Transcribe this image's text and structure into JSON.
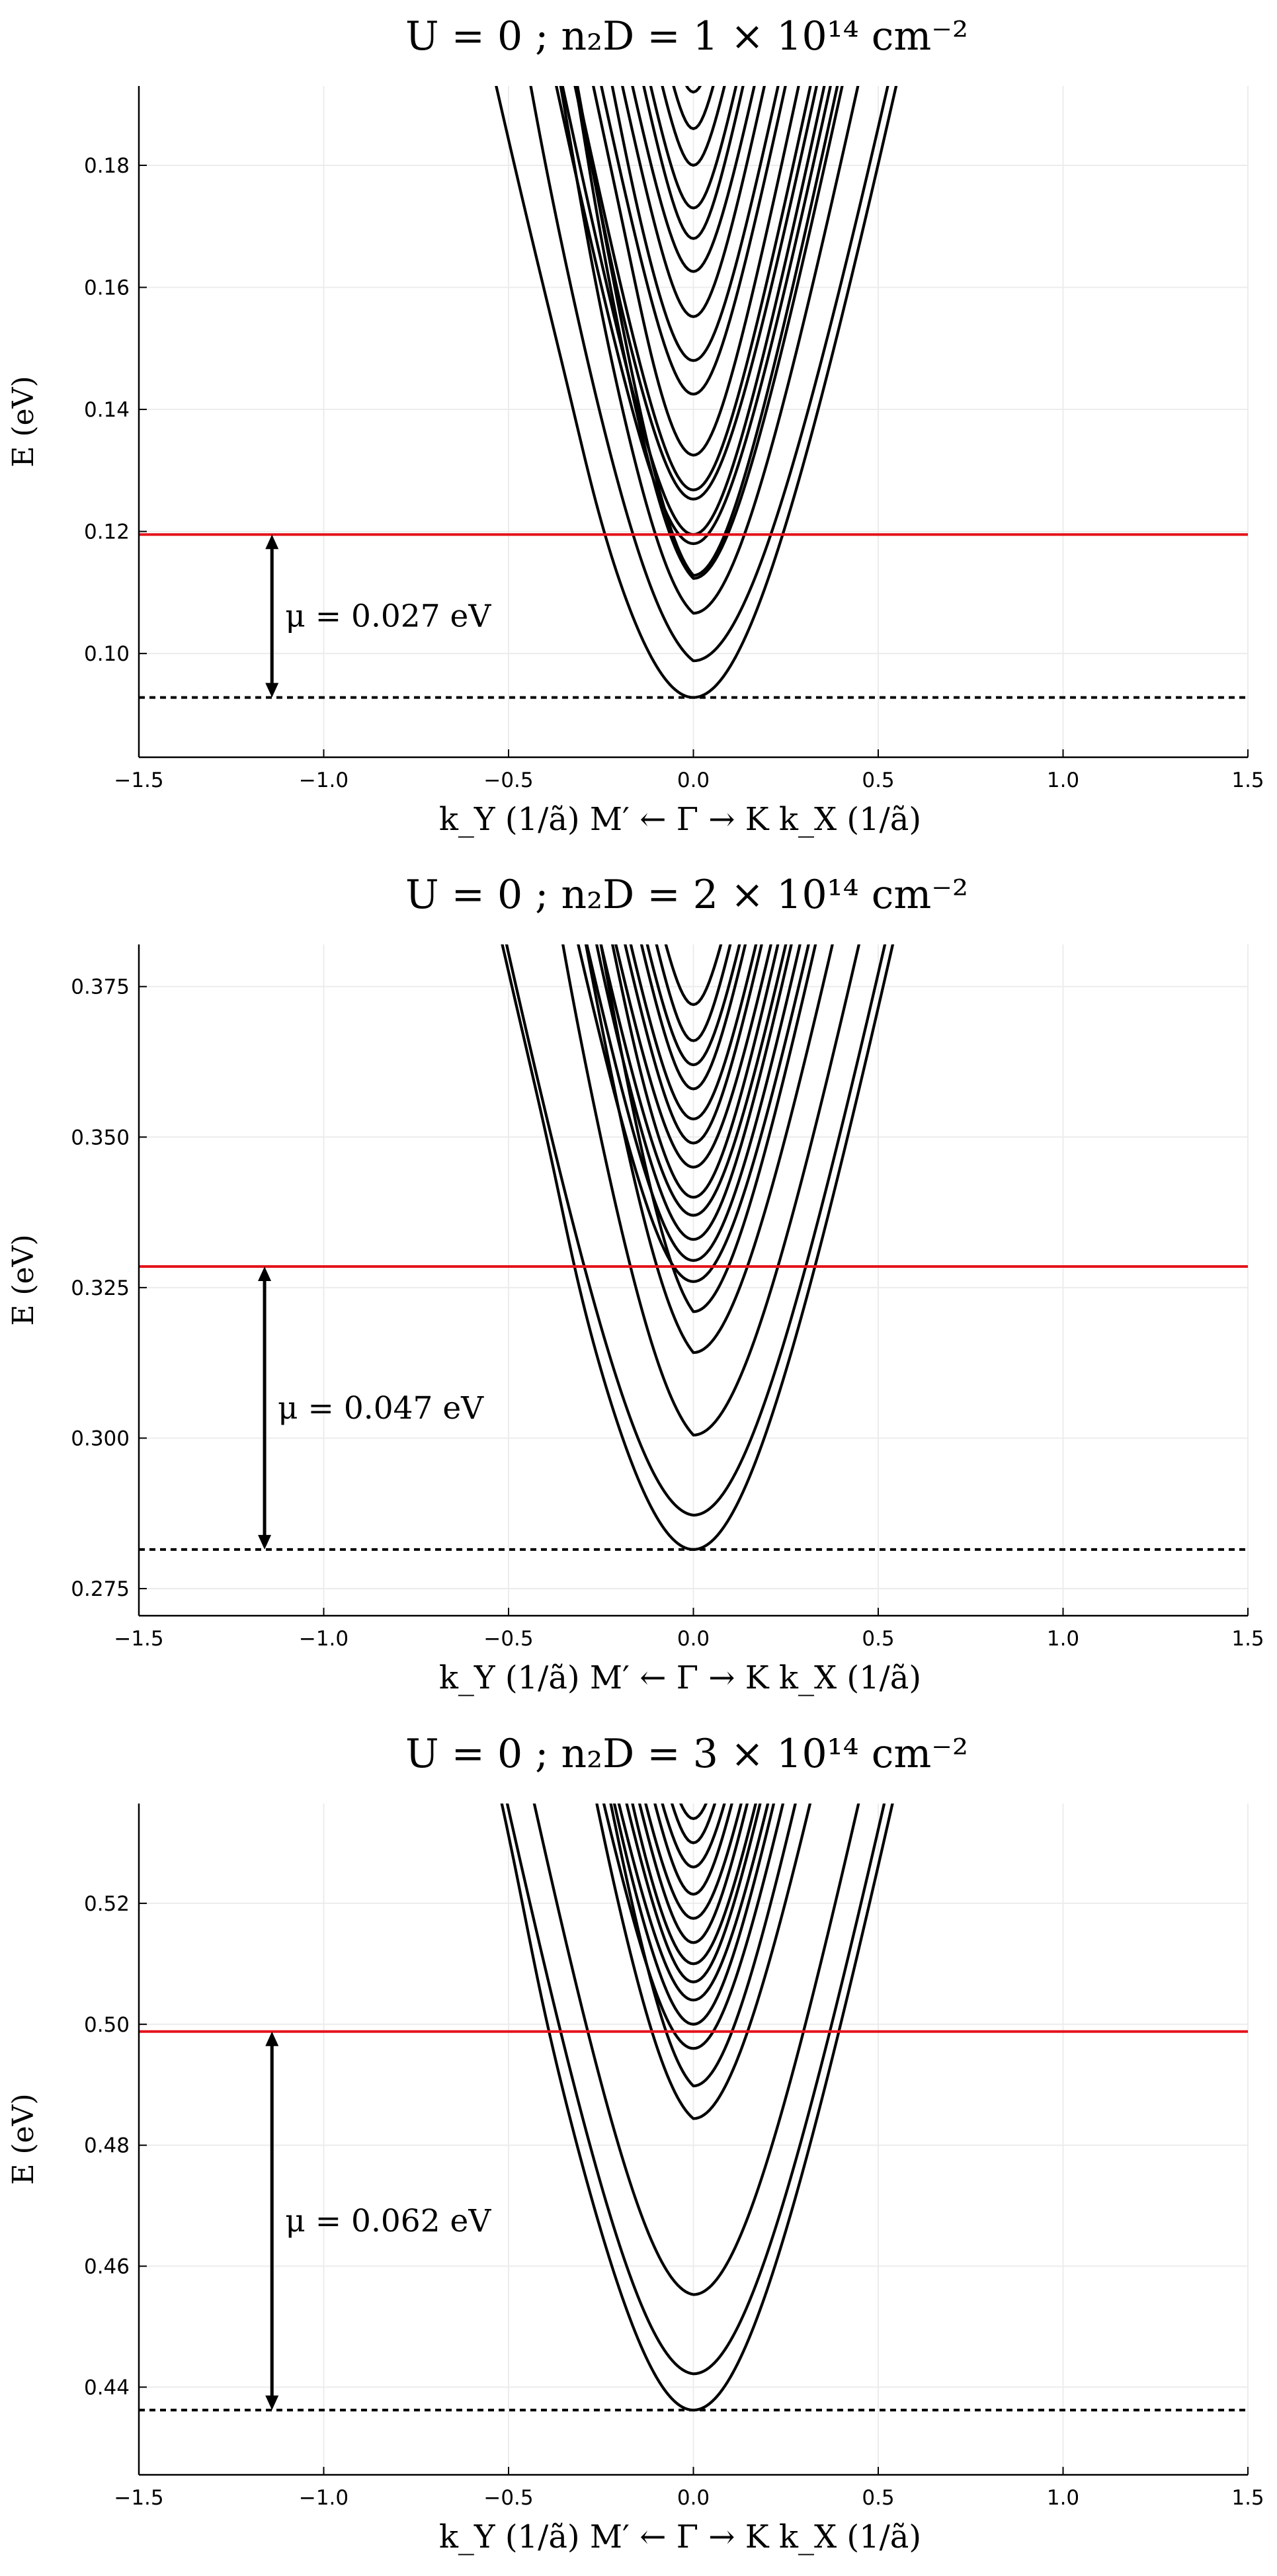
{
  "figure": {
    "band_color": "#000000",
    "fermi_color": "#e4141b",
    "grid_color": "#ececec"
  },
  "chart_data": [
    {
      "type": "line",
      "title": "U = 0 ; n₂D = 1 × 10¹⁴ cm⁻²",
      "xlabel": "k_Y (1/ã)    M′ ← Γ → K    k_X (1/ã)",
      "ylabel": "E (eV)",
      "xlim": [
        -1.5,
        1.5
      ],
      "ylim": [
        0.083,
        0.193
      ],
      "xticks": [
        -1.5,
        -1.0,
        -0.5,
        0.0,
        0.5,
        1.0,
        1.5
      ],
      "xtick_labels": [
        "−1.5",
        "−1.0",
        "−0.5",
        "0.0",
        "0.5",
        "1.0",
        "1.5"
      ],
      "yticks": [
        0.1,
        0.12,
        0.14,
        0.16,
        0.18
      ],
      "ytick_labels": [
        "0.10",
        "0.12",
        "0.14",
        "0.16",
        "0.18"
      ],
      "fermi_level": 0.1195,
      "band_bottom": 0.0928,
      "mu_annotation": {
        "text": "μ = 0.027 eV",
        "x": -1.14
      },
      "bands": [
        {
          "e0": 0.0928,
          "m": 0.085,
          "kink": {
            "x": -0.3,
            "d": 0.004
          },
          "left_offset": 0
        },
        {
          "e0": 0.0988,
          "m": 0.085,
          "kink": {
            "x": -0.45,
            "d": 0.004
          },
          "left_offset": 0.028
        },
        {
          "e0": 0.1066,
          "m": 0.06,
          "kink": {
            "x": -0.32,
            "d": 0.005
          },
          "left_offset": 0.032
        },
        {
          "e0": 0.1123,
          "m": 0.05,
          "kink": {
            "x": -0.3,
            "d": 0.006
          },
          "left_offset": 0.036
        },
        {
          "e0": 0.1128,
          "m": 0.045,
          "kink": null,
          "left_offset": 0.04
        },
        {
          "e0": 0.118,
          "m": 0.045,
          "kink": null,
          "left_offset": 0
        },
        {
          "e0": 0.1195,
          "m": 0.04,
          "kink": null,
          "left_offset": 0
        },
        {
          "e0": 0.1253,
          "m": 0.04,
          "kink": {
            "x": -0.25,
            "d": 0.004
          },
          "left_offset": 0
        },
        {
          "e0": 0.1268,
          "m": 0.035,
          "kink": null,
          "left_offset": 0
        },
        {
          "e0": 0.1325,
          "m": 0.03,
          "kink": {
            "x": -0.15,
            "d": 0.004
          },
          "left_offset": 0
        },
        {
          "e0": 0.1425,
          "m": 0.03,
          "kink": null,
          "left_offset": 0
        },
        {
          "e0": 0.148,
          "m": 0.03,
          "kink": {
            "x": -0.2,
            "d": 0.004
          },
          "left_offset": 0
        },
        {
          "e0": 0.1552,
          "m": 0.025,
          "kink": null,
          "left_offset": 0
        },
        {
          "e0": 0.1626,
          "m": 0.025,
          "kink": null,
          "left_offset": 0
        },
        {
          "e0": 0.168,
          "m": 0.02,
          "kink": null,
          "left_offset": 0
        },
        {
          "e0": 0.173,
          "m": 0.02,
          "kink": null,
          "left_offset": 0
        },
        {
          "e0": 0.18,
          "m": 0.018,
          "kink": null,
          "left_offset": 0
        },
        {
          "e0": 0.186,
          "m": 0.015,
          "kink": null,
          "left_offset": 0
        },
        {
          "e0": 0.192,
          "m": 0.015,
          "kink": null,
          "left_offset": 0
        }
      ]
    },
    {
      "type": "line",
      "title": "U = 0 ; n₂D = 2 × 10¹⁴ cm⁻²",
      "xlabel": "k_Y (1/ã)    M′ ← Γ → K    k_X (1/ã)",
      "ylabel": "E (eV)",
      "xlim": [
        -1.5,
        1.5
      ],
      "ylim": [
        0.2705,
        0.382
      ],
      "xticks": [
        -1.5,
        -1.0,
        -0.5,
        0.0,
        0.5,
        1.0,
        1.5
      ],
      "xtick_labels": [
        "−1.5",
        "−1.0",
        "−0.5",
        "0.0",
        "0.5",
        "1.0",
        "1.5"
      ],
      "yticks": [
        0.275,
        0.3,
        0.325,
        0.35,
        0.375
      ],
      "ytick_labels": [
        "0.275",
        "0.300",
        "0.325",
        "0.350",
        "0.375"
      ],
      "fermi_level": 0.3285,
      "band_bottom": 0.2815,
      "mu_annotation": {
        "text": "μ = 0.047 eV",
        "x": -1.16
      },
      "bands": [
        {
          "e0": 0.2815,
          "m": 0.08,
          "kink": {
            "x": -0.35,
            "d": 0.006
          },
          "left_offset": 0
        },
        {
          "e0": 0.2872,
          "m": 0.08,
          "kink": null,
          "left_offset": 0.004
        },
        {
          "e0": 0.3005,
          "m": 0.07,
          "kink": {
            "x": -0.4,
            "d": 0.006
          },
          "left_offset": 0.04
        },
        {
          "e0": 0.3142,
          "m": 0.06,
          "kink": {
            "x": -0.4,
            "d": 0.006
          },
          "left_offset": 0.045
        },
        {
          "e0": 0.321,
          "m": 0.05,
          "kink": {
            "x": -0.45,
            "d": 0.005
          },
          "left_offset": 0.05
        },
        {
          "e0": 0.326,
          "m": 0.05,
          "kink": null,
          "left_offset": 0
        },
        {
          "e0": 0.3295,
          "m": 0.045,
          "kink": null,
          "left_offset": 0
        },
        {
          "e0": 0.333,
          "m": 0.04,
          "kink": {
            "x": -0.3,
            "d": 0.004
          },
          "left_offset": 0
        },
        {
          "e0": 0.337,
          "m": 0.04,
          "kink": null,
          "left_offset": 0
        },
        {
          "e0": 0.34,
          "m": 0.035,
          "kink": {
            "x": -0.2,
            "d": 0.004
          },
          "left_offset": 0
        },
        {
          "e0": 0.345,
          "m": 0.035,
          "kink": null,
          "left_offset": 0
        },
        {
          "e0": 0.349,
          "m": 0.03,
          "kink": null,
          "left_offset": 0
        },
        {
          "e0": 0.353,
          "m": 0.03,
          "kink": null,
          "left_offset": 0
        },
        {
          "e0": 0.358,
          "m": 0.025,
          "kink": null,
          "left_offset": 0
        },
        {
          "e0": 0.362,
          "m": 0.025,
          "kink": null,
          "left_offset": 0
        },
        {
          "e0": 0.366,
          "m": 0.02,
          "kink": null,
          "left_offset": 0
        },
        {
          "e0": 0.372,
          "m": 0.02,
          "kink": null,
          "left_offset": 0
        }
      ]
    },
    {
      "type": "line",
      "title": "U = 0 ; n₂D = 3 × 10¹⁴ cm⁻²",
      "xlabel": "k_Y (1/ã)    M′ ← Γ → K    k_X (1/ã)",
      "ylabel": "E (eV)",
      "xlim": [
        -1.5,
        1.5
      ],
      "ylim": [
        0.4255,
        0.5365
      ],
      "xticks": [
        -1.5,
        -1.0,
        -0.5,
        0.0,
        0.5,
        1.0,
        1.5
      ],
      "xtick_labels": [
        "−1.5",
        "−1.0",
        "−0.5",
        "0.0",
        "0.5",
        "1.0",
        "1.5"
      ],
      "yticks": [
        0.44,
        0.46,
        0.48,
        0.5,
        0.52
      ],
      "ytick_labels": [
        "0.44",
        "0.46",
        "0.48",
        "0.50",
        "0.52"
      ],
      "fermi_level": 0.4988,
      "band_bottom": 0.4362,
      "mu_annotation": {
        "text": "μ = 0.062 eV",
        "x": -1.14
      },
      "bands": [
        {
          "e0": 0.4362,
          "m": 0.08,
          "kink": {
            "x": -0.45,
            "d": 0.006
          },
          "left_offset": 0
        },
        {
          "e0": 0.4422,
          "m": 0.08,
          "kink": null,
          "left_offset": 0.004
        },
        {
          "e0": 0.4553,
          "m": 0.07,
          "kink": null,
          "left_offset": 0.006
        },
        {
          "e0": 0.4844,
          "m": 0.06,
          "kink": {
            "x": -0.35,
            "d": 0.006
          },
          "left_offset": 0.03
        },
        {
          "e0": 0.4898,
          "m": 0.05,
          "kink": {
            "x": -0.4,
            "d": 0.005
          },
          "left_offset": 0.035
        },
        {
          "e0": 0.496,
          "m": 0.045,
          "kink": null,
          "left_offset": 0
        },
        {
          "e0": 0.5,
          "m": 0.04,
          "kink": {
            "x": -0.25,
            "d": 0.004
          },
          "left_offset": 0
        },
        {
          "e0": 0.504,
          "m": 0.04,
          "kink": null,
          "left_offset": 0
        },
        {
          "e0": 0.507,
          "m": 0.035,
          "kink": null,
          "left_offset": 0
        },
        {
          "e0": 0.51,
          "m": 0.035,
          "kink": {
            "x": -0.2,
            "d": 0.004
          },
          "left_offset": 0
        },
        {
          "e0": 0.5135,
          "m": 0.03,
          "kink": null,
          "left_offset": 0
        },
        {
          "e0": 0.5175,
          "m": 0.03,
          "kink": null,
          "left_offset": 0
        },
        {
          "e0": 0.5215,
          "m": 0.025,
          "kink": null,
          "left_offset": 0
        },
        {
          "e0": 0.526,
          "m": 0.025,
          "kink": null,
          "left_offset": 0
        },
        {
          "e0": 0.53,
          "m": 0.02,
          "kink": null,
          "left_offset": 0
        },
        {
          "e0": 0.534,
          "m": 0.02,
          "kink": null,
          "left_offset": 0
        }
      ]
    }
  ]
}
